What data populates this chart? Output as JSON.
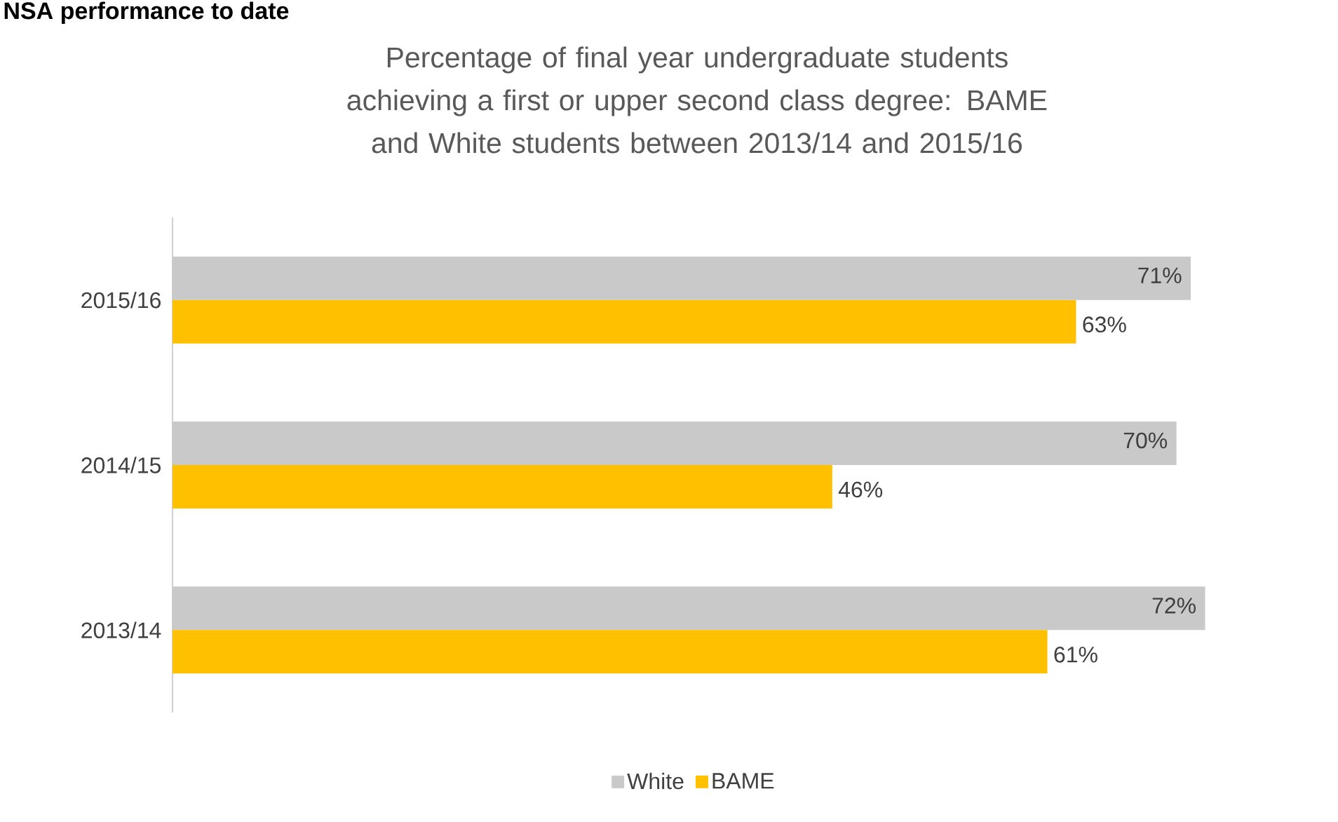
{
  "chart_data": {
    "type": "bar",
    "orientation": "horizontal",
    "title": "Percentage of final year undergraduate students achieving a first or upper second class degree: BAME and White students between 2013/14 and 2015/16",
    "annotations": [
      "NSA performance to date"
    ],
    "categories": [
      "2015/16",
      "2014/15",
      "2013/14"
    ],
    "series": [
      {
        "name": "White",
        "color": "#c9c9c9",
        "values": [
          71,
          70,
          72
        ],
        "value_labels": [
          "71%",
          "70%",
          "72%"
        ]
      },
      {
        "name": "BAME",
        "color": "#ffc000",
        "values": [
          63,
          46,
          61
        ],
        "value_labels": [
          "63%",
          "46%",
          "61%"
        ]
      }
    ],
    "tick_labels": "y",
    "legend": "bottom"
  }
}
